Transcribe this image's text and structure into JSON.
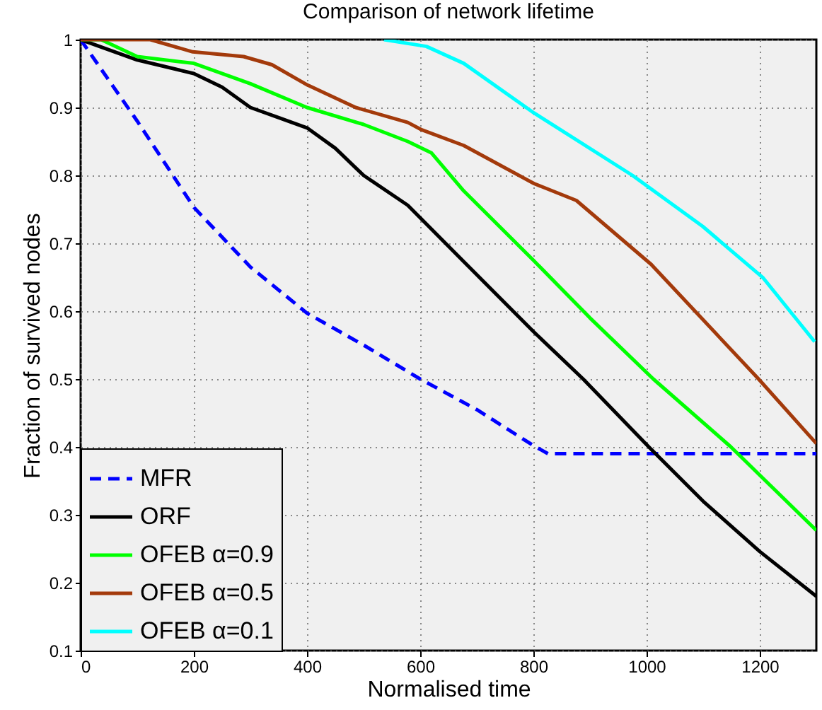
{
  "chart_data": {
    "type": "line",
    "title": "Comparison of network lifetime",
    "xlabel": "Normalised time",
    "ylabel": "Fraction of survived nodes",
    "xlim": [
      0,
      1300
    ],
    "ylim": [
      0.1,
      1
    ],
    "xticks": [
      0,
      200,
      400,
      600,
      800,
      1000,
      1200
    ],
    "yticks": [
      0.1,
      0.2,
      0.3,
      0.4,
      0.5,
      0.6,
      0.7,
      0.8,
      0.9,
      1
    ],
    "grid": true,
    "legend": "bottom left",
    "marker": "none",
    "series": [
      {
        "name": "MFR",
        "color": "#0000ff",
        "line_style": "dashed",
        "x": [
          0,
          100,
          200,
          300,
          400,
          500,
          600,
          700,
          800,
          826,
          1300
        ],
        "values": [
          1,
          0.88,
          0.753,
          0.665,
          0.597,
          0.55,
          0.5,
          0.455,
          0.402,
          0.39,
          0.39
        ]
      },
      {
        "name": "ORF",
        "color": "#000000",
        "line_style": "solid",
        "x": [
          0,
          100,
          200,
          250,
          300,
          350,
          400,
          450,
          500,
          578,
          677,
          800,
          888,
          1004,
          1100,
          1200,
          1300
        ],
        "values": [
          1,
          0.97,
          0.95,
          0.93,
          0.9,
          0.885,
          0.87,
          0.84,
          0.8,
          0.756,
          0.673,
          0.57,
          0.5,
          0.4,
          0.32,
          0.246,
          0.18
        ]
      },
      {
        "name": "OFEB α=0.9",
        "color": "#00ff00",
        "line_style": "solid",
        "x": [
          0,
          36,
          100,
          200,
          300,
          400,
          500,
          578,
          620,
          677,
          800,
          900,
          1012,
          1149,
          1300
        ],
        "values": [
          1,
          1,
          0.975,
          0.965,
          0.935,
          0.9,
          0.875,
          0.85,
          0.833,
          0.777,
          0.675,
          0.59,
          0.5,
          0.4,
          0.277
        ]
      },
      {
        "name": "OFEB α=0.5",
        "color": "#a33a0b",
        "line_style": "solid",
        "x": [
          0,
          82,
          123,
          198,
          288,
          338,
          401,
          486,
          578,
          603,
          677,
          801,
          876,
          1008,
          1198,
          1300
        ],
        "values": [
          1,
          1,
          1,
          0.982,
          0.975,
          0.963,
          0.933,
          0.9,
          0.878,
          0.867,
          0.844,
          0.788,
          0.763,
          0.669,
          0.5,
          0.405
        ]
      },
      {
        "name": "OFEB α=0.1",
        "color": "#00ffff",
        "line_style": "solid",
        "x": [
          536,
          611,
          677,
          801,
          975,
          1099,
          1206,
          1297
        ],
        "values": [
          1,
          0.99,
          0.965,
          0.892,
          0.8,
          0.725,
          0.649,
          0.555
        ]
      }
    ]
  }
}
